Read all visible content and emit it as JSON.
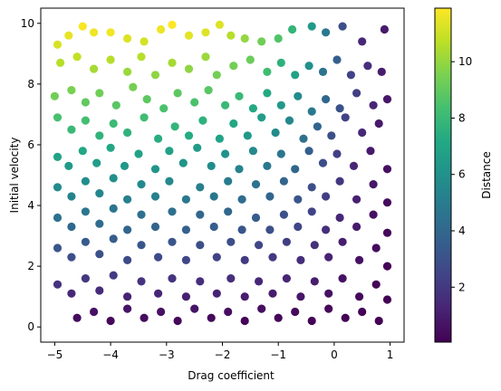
{
  "chart_data": {
    "type": "scatter",
    "title": "",
    "xlabel": "Drag coefficient",
    "ylabel": "Initial velocity",
    "colorbar_label": "Distance",
    "colormap": "viridis",
    "xlim": [
      -5.25,
      1.25
    ],
    "ylim": [
      -0.5,
      10.5
    ],
    "clim": [
      0.05,
      11.9
    ],
    "x_ticks": [
      -5,
      -4,
      -3,
      -2,
      -1,
      0,
      1
    ],
    "x_tick_labels": [
      "−5",
      "−4",
      "−3",
      "−2",
      "−1",
      "0",
      "1"
    ],
    "y_ticks": [
      0,
      2,
      4,
      6,
      8,
      10
    ],
    "y_tick_labels": [
      "0",
      "2",
      "4",
      "6",
      "8",
      "10"
    ],
    "colorbar_ticks": [
      2,
      4,
      6,
      8,
      10
    ],
    "colorbar_tick_labels": [
      "2",
      "4",
      "6",
      "8",
      "10"
    ],
    "grid": false,
    "legend": "none",
    "series": [
      {
        "points": [
          [
            -4.95,
            9.3,
            11.2
          ],
          [
            -4.75,
            9.6,
            11.5
          ],
          [
            -4.5,
            9.9,
            11.8
          ],
          [
            -4.3,
            9.7,
            11.6
          ],
          [
            -4.0,
            9.7,
            11.7
          ],
          [
            -3.7,
            9.5,
            11.3
          ],
          [
            -3.4,
            9.4,
            11.1
          ],
          [
            -3.1,
            9.8,
            11.6
          ],
          [
            -2.9,
            9.95,
            11.9
          ],
          [
            -2.6,
            9.6,
            11.4
          ],
          [
            -2.3,
            9.7,
            11.3
          ],
          [
            -2.05,
            9.95,
            11.3
          ],
          [
            -1.85,
            9.6,
            10.6
          ],
          [
            -1.6,
            9.5,
            10.0
          ],
          [
            -1.3,
            9.4,
            9.3
          ],
          [
            -1.0,
            9.5,
            8.6
          ],
          [
            -0.75,
            9.8,
            7.8
          ],
          [
            -0.4,
            9.9,
            6.4
          ],
          [
            -0.15,
            9.7,
            4.8
          ],
          [
            0.15,
            9.9,
            2.9
          ],
          [
            0.5,
            9.4,
            1.4
          ],
          [
            0.9,
            9.8,
            0.9
          ],
          [
            -4.9,
            8.7,
            10.6
          ],
          [
            -4.6,
            8.9,
            10.8
          ],
          [
            -4.3,
            8.5,
            10.3
          ],
          [
            -4.0,
            8.8,
            10.6
          ],
          [
            -3.7,
            8.4,
            10.1
          ],
          [
            -3.45,
            8.9,
            10.6
          ],
          [
            -3.2,
            8.3,
            9.9
          ],
          [
            -2.9,
            8.7,
            10.3
          ],
          [
            -2.6,
            8.5,
            9.9
          ],
          [
            -2.3,
            8.9,
            10.1
          ],
          [
            -2.1,
            8.3,
            9.4
          ],
          [
            -1.8,
            8.6,
            9.4
          ],
          [
            -1.5,
            8.8,
            9.2
          ],
          [
            -1.2,
            8.4,
            8.2
          ],
          [
            -0.95,
            8.7,
            7.6
          ],
          [
            -0.7,
            8.3,
            6.8
          ],
          [
            -0.45,
            8.6,
            6.0
          ],
          [
            -0.2,
            8.4,
            4.6
          ],
          [
            0.05,
            8.8,
            3.6
          ],
          [
            0.3,
            8.3,
            2.4
          ],
          [
            0.6,
            8.6,
            1.6
          ],
          [
            0.85,
            8.4,
            1.0
          ],
          [
            -5.0,
            7.6,
            9.3
          ],
          [
            -4.7,
            7.8,
            9.5
          ],
          [
            -4.45,
            7.4,
            9.0
          ],
          [
            -4.2,
            7.7,
            9.3
          ],
          [
            -3.9,
            7.3,
            8.8
          ],
          [
            -3.6,
            7.9,
            9.4
          ],
          [
            -3.35,
            7.5,
            8.9
          ],
          [
            -3.05,
            7.2,
            8.5
          ],
          [
            -2.8,
            7.7,
            8.9
          ],
          [
            -2.5,
            7.4,
            8.5
          ],
          [
            -2.25,
            7.8,
            8.8
          ],
          [
            -1.95,
            7.3,
            8.0
          ],
          [
            -1.7,
            7.6,
            8.0
          ],
          [
            -1.45,
            7.2,
            7.2
          ],
          [
            -1.2,
            7.7,
            7.2
          ],
          [
            -0.95,
            7.3,
            6.4
          ],
          [
            -0.65,
            7.6,
            5.8
          ],
          [
            -0.4,
            7.1,
            4.8
          ],
          [
            -0.15,
            7.5,
            4.0
          ],
          [
            0.1,
            7.2,
            3.0
          ],
          [
            0.4,
            7.7,
            2.2
          ],
          [
            0.7,
            7.3,
            1.3
          ],
          [
            0.95,
            7.5,
            0.8
          ],
          [
            -4.95,
            6.9,
            8.4
          ],
          [
            -4.7,
            6.5,
            8.0
          ],
          [
            -4.45,
            6.8,
            8.3
          ],
          [
            -4.2,
            6.3,
            7.7
          ],
          [
            -3.95,
            6.7,
            8.1
          ],
          [
            -3.7,
            6.4,
            7.7
          ],
          [
            -3.4,
            6.9,
            8.2
          ],
          [
            -3.15,
            6.2,
            7.4
          ],
          [
            -2.85,
            6.6,
            7.8
          ],
          [
            -2.6,
            6.3,
            7.3
          ],
          [
            -2.35,
            6.8,
            7.6
          ],
          [
            -2.05,
            6.2,
            6.9
          ],
          [
            -1.8,
            6.7,
            7.1
          ],
          [
            -1.55,
            6.3,
            6.4
          ],
          [
            -1.3,
            6.9,
            6.6
          ],
          [
            -1.05,
            6.4,
            5.7
          ],
          [
            -0.8,
            6.8,
            5.5
          ],
          [
            -0.55,
            6.2,
            4.4
          ],
          [
            -0.3,
            6.6,
            3.9
          ],
          [
            -0.05,
            6.3,
            2.9
          ],
          [
            0.2,
            6.9,
            2.4
          ],
          [
            0.5,
            6.4,
            1.4
          ],
          [
            0.8,
            6.7,
            0.9
          ],
          [
            -4.95,
            5.6,
            6.9
          ],
          [
            -4.75,
            5.3,
            6.5
          ],
          [
            -4.5,
            5.8,
            7.1
          ],
          [
            -4.25,
            5.4,
            6.6
          ],
          [
            -4.0,
            5.9,
            7.1
          ],
          [
            -3.75,
            5.3,
            6.4
          ],
          [
            -3.5,
            5.7,
            6.8
          ],
          [
            -3.2,
            5.2,
            6.2
          ],
          [
            -2.95,
            5.8,
            6.8
          ],
          [
            -2.7,
            5.4,
            6.2
          ],
          [
            -2.45,
            5.9,
            6.5
          ],
          [
            -2.2,
            5.3,
            5.8
          ],
          [
            -1.95,
            5.7,
            6.0
          ],
          [
            -1.7,
            5.2,
            5.3
          ],
          [
            -1.45,
            5.8,
            5.6
          ],
          [
            -1.2,
            5.3,
            4.8
          ],
          [
            -0.95,
            5.7,
            4.7
          ],
          [
            -0.7,
            5.2,
            4.0
          ],
          [
            -0.45,
            5.8,
            3.6
          ],
          [
            -0.2,
            5.4,
            2.8
          ],
          [
            0.05,
            5.7,
            2.2
          ],
          [
            0.35,
            5.3,
            1.3
          ],
          [
            0.65,
            5.8,
            0.9
          ],
          [
            0.95,
            5.2,
            0.5
          ],
          [
            -4.95,
            4.6,
            5.7
          ],
          [
            -4.7,
            4.3,
            5.3
          ],
          [
            -4.45,
            4.8,
            5.9
          ],
          [
            -4.2,
            4.4,
            5.4
          ],
          [
            -3.95,
            4.9,
            5.9
          ],
          [
            -3.7,
            4.2,
            5.1
          ],
          [
            -3.45,
            4.7,
            5.6
          ],
          [
            -3.2,
            4.3,
            5.1
          ],
          [
            -2.95,
            4.8,
            5.6
          ],
          [
            -2.65,
            4.2,
            4.8
          ],
          [
            -2.4,
            4.6,
            5.1
          ],
          [
            -2.15,
            4.3,
            4.7
          ],
          [
            -1.9,
            4.8,
            5.0
          ],
          [
            -1.65,
            4.2,
            4.2
          ],
          [
            -1.4,
            4.7,
            4.5
          ],
          [
            -1.15,
            4.3,
            3.9
          ],
          [
            -0.9,
            4.8,
            3.9
          ],
          [
            -0.65,
            4.2,
            3.2
          ],
          [
            -0.4,
            4.6,
            2.9
          ],
          [
            -0.15,
            4.3,
            2.2
          ],
          [
            0.1,
            4.8,
            1.9
          ],
          [
            0.4,
            4.2,
            1.1
          ],
          [
            0.7,
            4.7,
            0.8
          ],
          [
            0.95,
            4.1,
            0.4
          ],
          [
            -4.95,
            3.6,
            4.5
          ],
          [
            -4.7,
            3.3,
            4.1
          ],
          [
            -4.45,
            3.8,
            4.7
          ],
          [
            -4.2,
            3.4,
            4.2
          ],
          [
            -3.95,
            3.9,
            4.7
          ],
          [
            -3.7,
            3.2,
            3.9
          ],
          [
            -3.45,
            3.7,
            4.4
          ],
          [
            -3.2,
            3.3,
            3.9
          ],
          [
            -2.9,
            3.8,
            4.4
          ],
          [
            -2.65,
            3.2,
            3.7
          ],
          [
            -2.4,
            3.7,
            4.0
          ],
          [
            -2.15,
            3.3,
            3.6
          ],
          [
            -1.9,
            3.8,
            4.0
          ],
          [
            -1.65,
            3.2,
            3.2
          ],
          [
            -1.4,
            3.6,
            3.5
          ],
          [
            -1.15,
            3.2,
            2.9
          ],
          [
            -0.9,
            3.7,
            3.0
          ],
          [
            -0.65,
            3.3,
            2.5
          ],
          [
            -0.4,
            3.8,
            2.4
          ],
          [
            -0.15,
            3.2,
            1.6
          ],
          [
            0.1,
            3.6,
            1.4
          ],
          [
            0.4,
            3.3,
            0.9
          ],
          [
            0.7,
            3.7,
            0.6
          ],
          [
            0.95,
            3.1,
            0.3
          ],
          [
            -4.95,
            2.6,
            3.2
          ],
          [
            -4.7,
            2.3,
            2.9
          ],
          [
            -4.45,
            2.8,
            3.4
          ],
          [
            -4.2,
            2.4,
            3.0
          ],
          [
            -3.95,
            2.9,
            3.5
          ],
          [
            -3.7,
            2.2,
            2.7
          ],
          [
            -3.45,
            2.7,
            3.2
          ],
          [
            -3.15,
            2.3,
            2.7
          ],
          [
            -2.9,
            2.8,
            3.2
          ],
          [
            -2.65,
            2.2,
            2.5
          ],
          [
            -2.4,
            2.7,
            2.9
          ],
          [
            -2.1,
            2.3,
            2.4
          ],
          [
            -1.85,
            2.8,
            2.8
          ],
          [
            -1.6,
            2.2,
            2.1
          ],
          [
            -1.35,
            2.7,
            2.5
          ],
          [
            -1.1,
            2.3,
            2.0
          ],
          [
            -0.85,
            2.8,
            2.2
          ],
          [
            -0.6,
            2.2,
            1.6
          ],
          [
            -0.35,
            2.7,
            1.7
          ],
          [
            -0.1,
            2.3,
            1.2
          ],
          [
            0.15,
            2.8,
            1.0
          ],
          [
            0.45,
            2.2,
            0.6
          ],
          [
            0.75,
            2.6,
            0.4
          ],
          [
            0.95,
            2.0,
            0.2
          ],
          [
            -4.95,
            1.4,
            1.8
          ],
          [
            -4.7,
            1.1,
            1.4
          ],
          [
            -4.45,
            1.6,
            2.0
          ],
          [
            -4.2,
            1.2,
            1.5
          ],
          [
            -3.95,
            1.7,
            2.1
          ],
          [
            -3.7,
            1.0,
            1.2
          ],
          [
            -3.45,
            1.5,
            1.8
          ],
          [
            -3.15,
            1.1,
            1.3
          ],
          [
            -2.9,
            1.6,
            1.8
          ],
          [
            -2.65,
            1.0,
            1.1
          ],
          [
            -2.4,
            1.5,
            1.6
          ],
          [
            -2.1,
            1.1,
            1.2
          ],
          [
            -1.85,
            1.6,
            1.6
          ],
          [
            -1.6,
            1.0,
            1.0
          ],
          [
            -1.35,
            1.5,
            1.4
          ],
          [
            -1.1,
            1.1,
            1.0
          ],
          [
            -0.85,
            1.6,
            1.3
          ],
          [
            -0.6,
            1.0,
            0.8
          ],
          [
            -0.35,
            1.5,
            1.0
          ],
          [
            -0.1,
            1.1,
            0.6
          ],
          [
            0.15,
            1.6,
            0.6
          ],
          [
            0.45,
            1.0,
            0.3
          ],
          [
            0.75,
            1.4,
            0.2
          ],
          [
            0.95,
            0.9,
            0.1
          ],
          [
            -4.6,
            0.3,
            0.4
          ],
          [
            -4.3,
            0.5,
            0.6
          ],
          [
            -4.0,
            0.2,
            0.3
          ],
          [
            -3.7,
            0.6,
            0.7
          ],
          [
            -3.4,
            0.3,
            0.4
          ],
          [
            -3.1,
            0.5,
            0.6
          ],
          [
            -2.8,
            0.2,
            0.3
          ],
          [
            -2.5,
            0.6,
            0.7
          ],
          [
            -2.2,
            0.3,
            0.35
          ],
          [
            -1.9,
            0.5,
            0.5
          ],
          [
            -1.6,
            0.2,
            0.2
          ],
          [
            -1.3,
            0.6,
            0.5
          ],
          [
            -1.0,
            0.3,
            0.25
          ],
          [
            -0.7,
            0.5,
            0.35
          ],
          [
            -0.4,
            0.2,
            0.12
          ],
          [
            -0.1,
            0.6,
            0.25
          ],
          [
            0.2,
            0.3,
            0.1
          ],
          [
            0.5,
            0.5,
            0.12
          ],
          [
            0.8,
            0.2,
            0.05
          ]
        ]
      }
    ]
  }
}
